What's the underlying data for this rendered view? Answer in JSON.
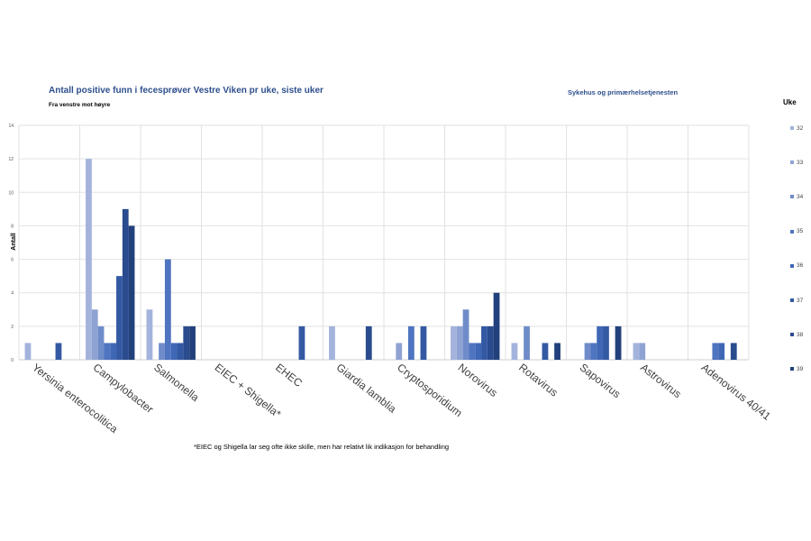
{
  "title": "Antall positive funn i fecesprøver Vestre Viken pr uke, siste uker",
  "subtitle": "Fra venstre mot høyre",
  "side_title": "Sykehus og primærhelsetjenesten",
  "legend_title": "Uke",
  "footnote": "*EIEC og Shigella lar seg ofte ikke skille, men har relativt lik indikasjon for behandling",
  "chart_data": {
    "type": "bar",
    "ylabel": "Antall",
    "ylim": [
      0,
      14
    ],
    "yticks": [
      0,
      2,
      4,
      6,
      8,
      10,
      12,
      14
    ],
    "grid": true,
    "legend_placement": "right",
    "categories": [
      "Yersinia enterocolitica",
      "Campylobacter",
      "Salmonella",
      "EIEC + Shigella*",
      "EHEC",
      "Giardia lamblia",
      "Cryptosporidium",
      "Norovirus",
      "Rotavirus",
      "Sapovirus",
      "Astrovirus",
      "Adenovirus 40/41"
    ],
    "series": [
      {
        "name": "32",
        "color": "#a3b3dc",
        "values": [
          1,
          12,
          3,
          0,
          0,
          2,
          0,
          2,
          1,
          0,
          1,
          0
        ]
      },
      {
        "name": "33",
        "color": "#8fa3d3",
        "values": [
          0,
          3,
          0,
          0,
          0,
          0,
          1,
          2,
          0,
          0,
          1,
          0
        ]
      },
      {
        "name": "34",
        "color": "#6f8cc9",
        "values": [
          0,
          2,
          1,
          0,
          0,
          0,
          0,
          3,
          2,
          1,
          0,
          0
        ]
      },
      {
        "name": "35",
        "color": "#4f74c0",
        "values": [
          0,
          1,
          6,
          0,
          0,
          0,
          2,
          1,
          0,
          1,
          0,
          1
        ]
      },
      {
        "name": "36",
        "color": "#3f67b5",
        "values": [
          0,
          1,
          1,
          0,
          0,
          0,
          0,
          1,
          0,
          2,
          0,
          1
        ]
      },
      {
        "name": "37",
        "color": "#3459a3",
        "values": [
          1,
          5,
          1,
          0,
          2,
          0,
          2,
          2,
          1,
          2,
          0,
          0
        ]
      },
      {
        "name": "38",
        "color": "#2a4b8e",
        "values": [
          0,
          9,
          2,
          0,
          0,
          2,
          0,
          2,
          0,
          0,
          0,
          1
        ]
      },
      {
        "name": "39",
        "color": "#22407c",
        "values": [
          0,
          8,
          2,
          0,
          0,
          0,
          0,
          4,
          1,
          2,
          0,
          0
        ]
      }
    ]
  }
}
